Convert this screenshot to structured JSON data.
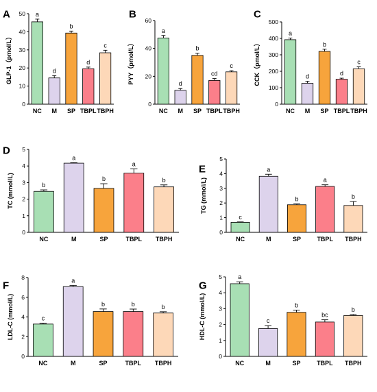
{
  "colors": {
    "NC": "#a8dfb4",
    "M": "#ddd3ec",
    "SP": "#f7a43c",
    "TBPL": "#fb7f8a",
    "TBPH": "#fdd8b8",
    "border": "#000000"
  },
  "chart_data": [
    {
      "panel": "A",
      "type": "bar",
      "ylabel": "GLP-1（pmol/L）",
      "categories": [
        "NC",
        "M",
        "SP",
        "TBPL",
        "TBPH"
      ],
      "values": [
        45.5,
        14.5,
        39.3,
        19.6,
        28.4
      ],
      "errors": [
        1.5,
        1.3,
        1.1,
        0.9,
        1.4
      ],
      "sig": [
        "a",
        "d",
        "b",
        "d",
        "c"
      ],
      "ylim": [
        0,
        50
      ],
      "yticks": [
        0,
        10,
        20,
        30,
        40,
        50
      ]
    },
    {
      "panel": "B",
      "type": "bar",
      "ylabel": "PYY（pmol/L）",
      "categories": [
        "NC",
        "M",
        "SP",
        "TBPL",
        "TBPH"
      ],
      "values": [
        47.5,
        10.0,
        35.0,
        17.0,
        23.2
      ],
      "errors": [
        1.8,
        1.2,
        1.6,
        1.4,
        0.8
      ],
      "sig": [
        "a",
        "d",
        "b",
        "cd",
        "c"
      ],
      "ylim": [
        0,
        60
      ],
      "yticks": [
        0,
        20,
        40,
        60
      ]
    },
    {
      "panel": "C",
      "type": "bar",
      "ylabel": "CCK（pmol/L）",
      "categories": [
        "NC",
        "M",
        "SP",
        "TBPL",
        "TBPH"
      ],
      "values": [
        392,
        127,
        321,
        152,
        215
      ],
      "errors": [
        10,
        12,
        13,
        6,
        12
      ],
      "sig": [
        "a",
        "d",
        "b",
        "d",
        "c"
      ],
      "ylim": [
        0,
        500
      ],
      "yticks": [
        0,
        100,
        200,
        300,
        400,
        500
      ]
    },
    {
      "panel": "D",
      "type": "bar",
      "ylabel": "TC (mmol/L)",
      "categories": [
        "NC",
        "M",
        "SP",
        "TBPL",
        "TBPH"
      ],
      "values": [
        2.47,
        4.17,
        2.65,
        3.57,
        2.74
      ],
      "errors": [
        0.09,
        0.03,
        0.28,
        0.26,
        0.12
      ],
      "sig": [
        "b",
        "a",
        "b",
        "a",
        "b"
      ],
      "ylim": [
        0,
        5
      ],
      "yticks": [
        0,
        1,
        2,
        3,
        4,
        5
      ]
    },
    {
      "panel": "E",
      "type": "bar",
      "ylabel": "TG (mmol/L)",
      "categories": [
        "NC",
        "M",
        "SP",
        "TBPL",
        "TBPH"
      ],
      "values": [
        0.68,
        3.82,
        1.88,
        3.13,
        1.83
      ],
      "errors": [
        0.03,
        0.14,
        0.06,
        0.11,
        0.27
      ],
      "sig": [
        "c",
        "a",
        "b",
        "a",
        "b"
      ],
      "ylim": [
        0,
        5
      ],
      "yticks": [
        0,
        1,
        2,
        3,
        4,
        5
      ]
    },
    {
      "panel": "F",
      "type": "bar",
      "ylabel": "LDL-C (mmol/L)",
      "categories": [
        "NC",
        "M",
        "SP",
        "TBPL",
        "TBPH"
      ],
      "values": [
        3.28,
        7.08,
        4.55,
        4.55,
        4.4
      ],
      "errors": [
        0.09,
        0.13,
        0.26,
        0.25,
        0.13
      ],
      "sig": [
        "c",
        "a",
        "b",
        "b",
        "b"
      ],
      "ylim": [
        0,
        8
      ],
      "yticks": [
        0,
        2,
        4,
        6,
        8
      ]
    },
    {
      "panel": "G",
      "type": "bar",
      "ylabel": "HDL-C (mmol/L)",
      "categories": [
        "NC",
        "M",
        "SP",
        "TBPL",
        "TBPH"
      ],
      "values": [
        4.57,
        1.75,
        2.77,
        2.16,
        2.57
      ],
      "errors": [
        0.12,
        0.18,
        0.14,
        0.14,
        0.06
      ],
      "sig": [
        "a",
        "c",
        "b",
        "bc",
        "b"
      ],
      "ylim": [
        0,
        5
      ],
      "yticks": [
        0,
        1,
        2,
        3,
        4,
        5
      ]
    }
  ]
}
